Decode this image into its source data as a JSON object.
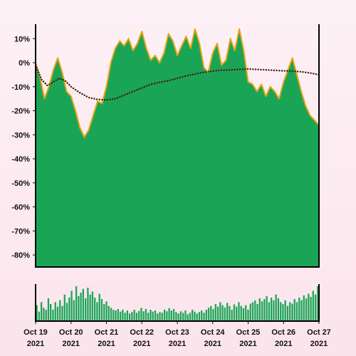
{
  "chart_data": [
    {
      "type": "area",
      "title": "",
      "xlabel": "",
      "ylabel": "",
      "x_ticks": [
        {
          "line1": "Oct 19",
          "line2": "2021"
        },
        {
          "line1": "Oct 20",
          "line2": "2021"
        },
        {
          "line1": "Oct 21",
          "line2": "2021"
        },
        {
          "line1": "Oct 22",
          "line2": "2021"
        },
        {
          "line1": "Oct 23",
          "line2": "2021"
        },
        {
          "line1": "Oct 24",
          "line2": "2021"
        },
        {
          "line1": "Oct 25",
          "line2": "2021"
        },
        {
          "line1": "Oct 26",
          "line2": "2021"
        },
        {
          "line1": "Oct 27",
          "line2": "2021"
        }
      ],
      "y_ticks": [
        "10%",
        "0%",
        "-10%",
        "-20%",
        "-30%",
        "-40%",
        "-50%",
        "-60%",
        "-70%",
        "-80%"
      ],
      "y_tick_values": [
        10,
        0,
        -10,
        -20,
        -30,
        -40,
        -50,
        -60,
        -70,
        -80
      ],
      "ylim": [
        -85,
        16
      ],
      "xlim": [
        "Oct 19 2021",
        "Oct 27 2021"
      ],
      "grid": false,
      "series": [
        {
          "type": "area",
          "color": "#1aa556",
          "edge_color": "#e8a412",
          "points": [
            [
              "Oct 19 2021 00:00",
              0
            ],
            [
              "Oct 19 2021 03:00",
              -6
            ],
            [
              "Oct 19 2021 06:00",
              -15
            ],
            [
              "Oct 19 2021 09:00",
              -10
            ],
            [
              "Oct 19 2021 12:00",
              -3
            ],
            [
              "Oct 19 2021 15:00",
              2
            ],
            [
              "Oct 19 2021 18:00",
              -4
            ],
            [
              "Oct 19 2021 21:00",
              -12
            ],
            [
              "Oct 20 2021 00:00",
              -14
            ],
            [
              "Oct 20 2021 03:00",
              -20
            ],
            [
              "Oct 20 2021 06:00",
              -27
            ],
            [
              "Oct 20 2021 09:00",
              -31
            ],
            [
              "Oct 20 2021 12:00",
              -28
            ],
            [
              "Oct 20 2021 15:00",
              -22
            ],
            [
              "Oct 20 2021 18:00",
              -16
            ],
            [
              "Oct 20 2021 21:00",
              -17
            ],
            [
              "Oct 21 2021 00:00",
              -10
            ],
            [
              "Oct 21 2021 03:00",
              0
            ],
            [
              "Oct 21 2021 06:00",
              6
            ],
            [
              "Oct 21 2021 09:00",
              9
            ],
            [
              "Oct 21 2021 12:00",
              7
            ],
            [
              "Oct 21 2021 15:00",
              10
            ],
            [
              "Oct 21 2021 18:00",
              5
            ],
            [
              "Oct 21 2021 21:00",
              8
            ],
            [
              "Oct 22 2021 00:00",
              13
            ],
            [
              "Oct 22 2021 03:00",
              6
            ],
            [
              "Oct 22 2021 06:00",
              1
            ],
            [
              "Oct 22 2021 09:00",
              3
            ],
            [
              "Oct 22 2021 12:00",
              0
            ],
            [
              "Oct 22 2021 15:00",
              4
            ],
            [
              "Oct 22 2021 18:00",
              12
            ],
            [
              "Oct 22 2021 21:00",
              9
            ],
            [
              "Oct 23 2021 00:00",
              3
            ],
            [
              "Oct 23 2021 03:00",
              7
            ],
            [
              "Oct 23 2021 06:00",
              11
            ],
            [
              "Oct 23 2021 09:00",
              6
            ],
            [
              "Oct 23 2021 12:00",
              14
            ],
            [
              "Oct 23 2021 15:00",
              8
            ],
            [
              "Oct 23 2021 18:00",
              -2
            ],
            [
              "Oct 23 2021 21:00",
              -4
            ],
            [
              "Oct 24 2021 00:00",
              4
            ],
            [
              "Oct 24 2021 03:00",
              8
            ],
            [
              "Oct 24 2021 06:00",
              -1
            ],
            [
              "Oct 24 2021 09:00",
              1
            ],
            [
              "Oct 24 2021 12:00",
              10
            ],
            [
              "Oct 24 2021 15:00",
              5
            ],
            [
              "Oct 24 2021 18:00",
              14
            ],
            [
              "Oct 24 2021 21:00",
              5
            ],
            [
              "Oct 25 2021 00:00",
              -8
            ],
            [
              "Oct 25 2021 03:00",
              -9
            ],
            [
              "Oct 25 2021 06:00",
              -12
            ],
            [
              "Oct 25 2021 09:00",
              -9
            ],
            [
              "Oct 25 2021 12:00",
              -14
            ],
            [
              "Oct 25 2021 15:00",
              -10
            ],
            [
              "Oct 25 2021 18:00",
              -12
            ],
            [
              "Oct 25 2021 21:00",
              -15
            ],
            [
              "Oct 26 2021 00:00",
              -8
            ],
            [
              "Oct 26 2021 03:00",
              -3
            ],
            [
              "Oct 26 2021 06:00",
              2
            ],
            [
              "Oct 26 2021 09:00",
              -5
            ],
            [
              "Oct 26 2021 12:00",
              -12
            ],
            [
              "Oct 26 2021 15:00",
              -18
            ],
            [
              "Oct 26 2021 18:00",
              -22
            ],
            [
              "Oct 26 2021 21:00",
              -24
            ],
            [
              "Oct 27 2021 00:00",
              -26
            ]
          ]
        },
        {
          "type": "line",
          "style": "dotted",
          "color": "#4a1a10",
          "points": [
            [
              "Oct 19 2021 00:00",
              -1
            ],
            [
              "Oct 19 2021 04:00",
              -7
            ],
            [
              "Oct 19 2021 08:00",
              -9.5
            ],
            [
              "Oct 19 2021 12:00",
              -8
            ],
            [
              "Oct 19 2021 16:00",
              -6.5
            ],
            [
              "Oct 19 2021 20:00",
              -7.5
            ],
            [
              "Oct 20 2021 00:00",
              -10
            ],
            [
              "Oct 20 2021 06:00",
              -12.5
            ],
            [
              "Oct 20 2021 12:00",
              -14.5
            ],
            [
              "Oct 20 2021 18:00",
              -15.3
            ],
            [
              "Oct 21 2021 00:00",
              -15.5
            ],
            [
              "Oct 21 2021 06:00",
              -15
            ],
            [
              "Oct 21 2021 12:00",
              -13.5
            ],
            [
              "Oct 21 2021 18:00",
              -12
            ],
            [
              "Oct 22 2021 00:00",
              -10.5
            ],
            [
              "Oct 22 2021 06:00",
              -9
            ],
            [
              "Oct 22 2021 12:00",
              -8.2
            ],
            [
              "Oct 22 2021 18:00",
              -7.5
            ],
            [
              "Oct 23 2021 00:00",
              -6.5
            ],
            [
              "Oct 23 2021 06:00",
              -5.5
            ],
            [
              "Oct 23 2021 12:00",
              -4.7
            ],
            [
              "Oct 23 2021 18:00",
              -4
            ],
            [
              "Oct 24 2021 00:00",
              -3.5
            ],
            [
              "Oct 24 2021 06:00",
              -3.1
            ],
            [
              "Oct 24 2021 12:00",
              -3
            ],
            [
              "Oct 24 2021 18:00",
              -2.8
            ],
            [
              "Oct 25 2021 00:00",
              -2.6
            ],
            [
              "Oct 25 2021 06:00",
              -2.8
            ],
            [
              "Oct 25 2021 12:00",
              -3
            ],
            [
              "Oct 25 2021 18:00",
              -3.2
            ],
            [
              "Oct 26 2021 00:00",
              -3.4
            ],
            [
              "Oct 26 2021 06:00",
              -3.5
            ],
            [
              "Oct 26 2021 12:00",
              -3.8
            ],
            [
              "Oct 26 2021 18:00",
              -4.3
            ],
            [
              "Oct 27 2021 00:00",
              -5
            ]
          ]
        }
      ]
    },
    {
      "type": "bar",
      "title": "",
      "xlabel": "",
      "ylabel": "",
      "color": "#1aa556",
      "values": [
        0.42,
        0.25,
        0.5,
        0.35,
        0.3,
        0.6,
        0.45,
        0.3,
        0.5,
        0.38,
        0.55,
        0.4,
        0.7,
        0.48,
        0.62,
        0.8,
        0.55,
        0.92,
        0.66,
        0.75,
        0.85,
        0.6,
        0.88,
        0.7,
        0.78,
        0.62,
        0.5,
        0.72,
        0.58,
        0.45,
        0.52,
        0.4,
        0.35,
        0.3,
        0.28,
        0.32,
        0.25,
        0.3,
        0.22,
        0.28,
        0.2,
        0.24,
        0.3,
        0.22,
        0.27,
        0.35,
        0.26,
        0.32,
        0.22,
        0.3,
        0.25,
        0.28,
        0.2,
        0.24,
        0.22,
        0.3,
        0.26,
        0.34,
        0.28,
        0.32,
        0.24,
        0.2,
        0.26,
        0.22,
        0.28,
        0.18,
        0.22,
        0.3,
        0.25,
        0.2,
        0.24,
        0.28,
        0.22,
        0.3,
        0.35,
        0.4,
        0.32,
        0.45,
        0.38,
        0.5,
        0.42,
        0.36,
        0.48,
        0.4,
        0.3,
        0.44,
        0.38,
        0.5,
        0.4,
        0.34,
        0.42,
        0.3,
        0.46,
        0.5,
        0.55,
        0.45,
        0.6,
        0.52,
        0.58,
        0.66,
        0.5,
        0.62,
        0.55,
        0.7,
        0.6,
        0.5,
        0.45,
        0.55,
        0.4,
        0.5,
        0.46,
        0.58,
        0.5,
        0.62,
        0.55,
        0.68,
        0.6,
        0.72,
        0.64,
        0.8,
        0.7,
        0.92
      ]
    }
  ]
}
